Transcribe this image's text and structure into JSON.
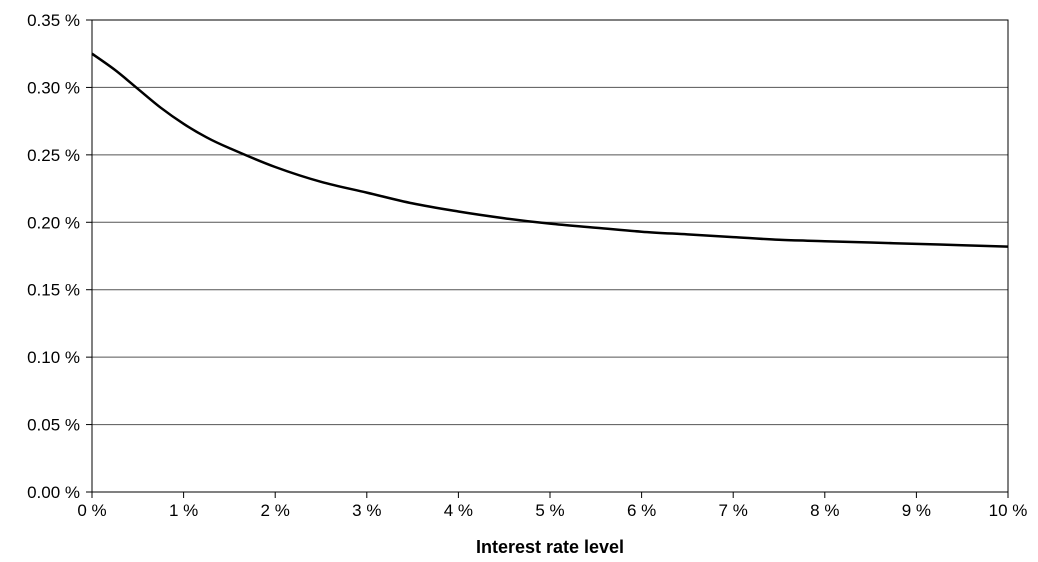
{
  "chart_data": {
    "type": "line",
    "title": "",
    "xlabel": "Interest rate level",
    "ylabel": "",
    "xlim": [
      0,
      10
    ],
    "ylim": [
      0,
      0.35
    ],
    "grid": "horizontal",
    "x_ticks": [
      {
        "value": 0,
        "label": "0 %"
      },
      {
        "value": 1,
        "label": "1 %"
      },
      {
        "value": 2,
        "label": "2 %"
      },
      {
        "value": 3,
        "label": "3 %"
      },
      {
        "value": 4,
        "label": "4 %"
      },
      {
        "value": 5,
        "label": "5 %"
      },
      {
        "value": 6,
        "label": "6 %"
      },
      {
        "value": 7,
        "label": "7 %"
      },
      {
        "value": 8,
        "label": "8 %"
      },
      {
        "value": 9,
        "label": "9 %"
      },
      {
        "value": 10,
        "label": "10 %"
      }
    ],
    "y_ticks": [
      {
        "value": 0,
        "label": "0.00 %"
      },
      {
        "value": 0.05,
        "label": "0.05 %"
      },
      {
        "value": 0.1,
        "label": "0.10 %"
      },
      {
        "value": 0.15,
        "label": "0.15 %"
      },
      {
        "value": 0.2,
        "label": "0.20 %"
      },
      {
        "value": 0.25,
        "label": "0.25 %"
      },
      {
        "value": 0.3,
        "label": "0.30 %"
      },
      {
        "value": 0.35,
        "label": "0.35 %"
      }
    ],
    "series": [
      {
        "color": "#000000",
        "x": [
          0,
          0.25,
          0.5,
          0.75,
          1,
          1.25,
          1.5,
          2,
          2.5,
          3,
          3.5,
          4,
          4.5,
          5,
          5.5,
          6,
          6.5,
          7,
          7.5,
          8,
          8.5,
          9,
          9.5,
          10
        ],
        "y": [
          0.325,
          0.313,
          0.299,
          0.285,
          0.273,
          0.263,
          0.255,
          0.241,
          0.23,
          0.222,
          0.214,
          0.208,
          0.203,
          0.199,
          0.196,
          0.193,
          0.191,
          0.189,
          0.187,
          0.186,
          0.185,
          0.184,
          0.183,
          0.182
        ]
      }
    ]
  }
}
